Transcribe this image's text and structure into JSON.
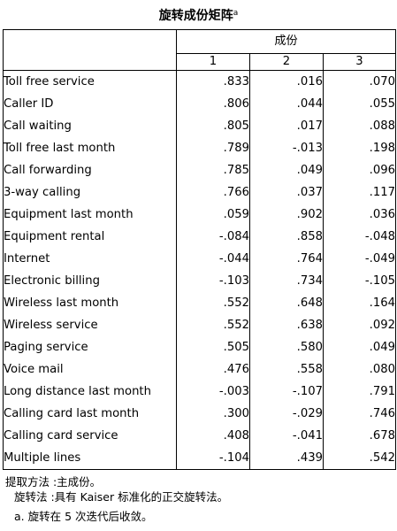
{
  "title": "旋转成份矩阵",
  "title_sup": "a",
  "header": {
    "group_label": "成份",
    "columns": [
      "1",
      "2",
      "3"
    ]
  },
  "rows": [
    {
      "label": "Toll free service",
      "values": [
        ".833",
        ".016",
        ".070"
      ]
    },
    {
      "label": "Caller ID",
      "values": [
        ".806",
        ".044",
        ".055"
      ]
    },
    {
      "label": "Call waiting",
      "values": [
        ".805",
        ".017",
        ".088"
      ]
    },
    {
      "label": "Toll free last month",
      "values": [
        ".789",
        "-.013",
        ".198"
      ]
    },
    {
      "label": "Call forwarding",
      "values": [
        ".785",
        ".049",
        ".096"
      ]
    },
    {
      "label": "3-way calling",
      "values": [
        ".766",
        ".037",
        ".117"
      ]
    },
    {
      "label": "Equipment last month",
      "values": [
        ".059",
        ".902",
        ".036"
      ]
    },
    {
      "label": "Equipment rental",
      "values": [
        "-.084",
        ".858",
        "-.048"
      ]
    },
    {
      "label": "Internet",
      "values": [
        "-.044",
        ".764",
        "-.049"
      ]
    },
    {
      "label": "Electronic billing",
      "values": [
        "-.103",
        ".734",
        "-.105"
      ]
    },
    {
      "label": "Wireless last month",
      "values": [
        ".552",
        ".648",
        ".164"
      ]
    },
    {
      "label": "Wireless service",
      "values": [
        ".552",
        ".638",
        ".092"
      ]
    },
    {
      "label": "Paging service",
      "values": [
        ".505",
        ".580",
        ".049"
      ]
    },
    {
      "label": "Voice mail",
      "values": [
        ".476",
        ".558",
        ".080"
      ]
    },
    {
      "label": "Long distance last month",
      "values": [
        "-.003",
        "-.107",
        ".791"
      ]
    },
    {
      "label": "Calling card last month",
      "values": [
        ".300",
        "-.029",
        ".746"
      ]
    },
    {
      "label": "Calling card service",
      "values": [
        ".408",
        "-.041",
        ".678"
      ]
    },
    {
      "label": "Multiple lines",
      "values": [
        "-.104",
        ".439",
        ".542"
      ]
    }
  ],
  "footnotes": {
    "extraction": "提取方法 :主成份。",
    "rotation": "旋转法 :具有 Kaiser 标准化的正交旋转法。",
    "note_a": "a. 旋转在 5 次迭代后收敛。"
  }
}
